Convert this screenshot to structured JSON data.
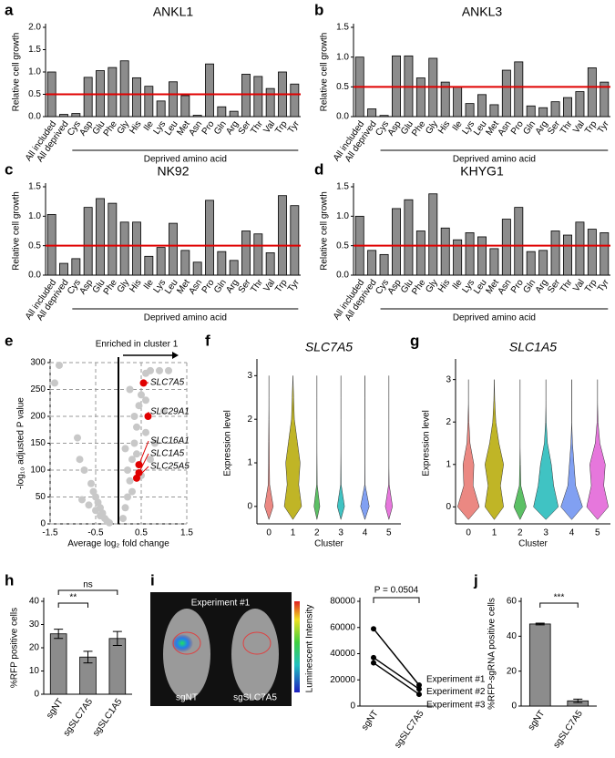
{
  "chart_data": [
    {
      "panel": "a",
      "type": "bar",
      "title": "ANKL1",
      "ylabel": "Relative cell growth",
      "xlabel": "Deprived amino acid",
      "categories": [
        "All included",
        "All deprived",
        "Cys",
        "Asp",
        "Glu",
        "Phe",
        "Gly",
        "His",
        "Ile",
        "Lys",
        "Leu",
        "Met",
        "Asn",
        "Pro",
        "Gln",
        "Arg",
        "Ser",
        "Thr",
        "Val",
        "Trp",
        "Tyr"
      ],
      "values": [
        1.0,
        0.05,
        0.07,
        0.88,
        1.03,
        1.1,
        1.25,
        0.87,
        0.68,
        0.35,
        0.78,
        0.47,
        0.03,
        1.18,
        0.22,
        0.12,
        0.95,
        0.9,
        0.63,
        1.0,
        0.73
      ],
      "color": "#8c8c8c",
      "ylim": [
        0,
        2
      ],
      "yticks": [
        {
          "value": 0,
          "label": "0.0"
        },
        0.5,
        {
          "value": 1,
          "label": "1.0"
        },
        1.5,
        {
          "value": 2,
          "label": "2.0"
        }
      ],
      "hline": 0.5,
      "hline_color": "#e00000"
    },
    {
      "panel": "b",
      "type": "bar",
      "title": "ANKL3",
      "ylabel": "Relative cell growth",
      "xlabel": "Deprived amino acid",
      "categories": [
        "All included",
        "All deprived",
        "Cys",
        "Asp",
        "Glu",
        "Phe",
        "Gly",
        "His",
        "Ile",
        "Lys",
        "Leu",
        "Met",
        "Asn",
        "Pro",
        "Gln",
        "Arg",
        "Ser",
        "Thr",
        "Val",
        "Trp",
        "Tyr"
      ],
      "values": [
        1.0,
        0.13,
        0.02,
        1.02,
        1.02,
        0.65,
        0.98,
        0.58,
        0.5,
        0.22,
        0.37,
        0.2,
        0.78,
        0.92,
        0.18,
        0.15,
        0.25,
        0.32,
        0.42,
        0.82,
        0.58
      ],
      "color": "#8c8c8c",
      "ylim": [
        0,
        1.5
      ],
      "yticks": [
        {
          "value": 0,
          "label": "0.0"
        },
        0.5,
        {
          "value": 1,
          "label": "1.0"
        },
        1.5
      ],
      "hline": 0.5,
      "hline_color": "#e00000"
    },
    {
      "panel": "c",
      "type": "bar",
      "title": "NK92",
      "ylabel": "Relative cell growth",
      "xlabel": "Deprived amino acid",
      "categories": [
        "All included",
        "All deprived",
        "Cys",
        "Asp",
        "Glu",
        "Phe",
        "Gly",
        "His",
        "Ile",
        "Lys",
        "Leu",
        "Met",
        "Asn",
        "Pro",
        "Gln",
        "Arg",
        "Ser",
        "Thr",
        "Val",
        "Trp",
        "Tyr"
      ],
      "values": [
        1.03,
        0.2,
        0.28,
        1.15,
        1.3,
        1.22,
        0.9,
        0.9,
        0.32,
        0.47,
        0.88,
        0.42,
        0.22,
        1.27,
        0.4,
        0.25,
        0.75,
        0.7,
        0.38,
        1.35,
        1.18
      ],
      "color": "#8c8c8c",
      "ylim": [
        0,
        1.5
      ],
      "yticks": [
        {
          "value": 0,
          "label": "0.0"
        },
        0.5,
        {
          "value": 1,
          "label": "1.0"
        },
        1.5
      ],
      "hline": 0.5,
      "hline_color": "#e00000"
    },
    {
      "panel": "d",
      "type": "bar",
      "title": "KHYG1",
      "ylabel": "Relative cell growth",
      "xlabel": "Deprived amino acid",
      "categories": [
        "All included",
        "All deprived",
        "Cys",
        "Asp",
        "Glu",
        "Phe",
        "Gly",
        "His",
        "Ile",
        "Lys",
        "Leu",
        "Met",
        "Asn",
        "Pro",
        "Gln",
        "Arg",
        "Ser",
        "Thr",
        "Val",
        "Trp",
        "Tyr"
      ],
      "values": [
        1.0,
        0.42,
        0.35,
        1.13,
        1.28,
        0.75,
        1.38,
        0.8,
        0.6,
        0.72,
        0.65,
        0.45,
        0.95,
        1.15,
        0.4,
        0.42,
        0.75,
        0.68,
        0.9,
        0.78,
        0.72
      ],
      "color": "#8c8c8c",
      "ylim": [
        0,
        1.5
      ],
      "yticks": [
        {
          "value": 0,
          "label": "0.0"
        },
        0.5,
        {
          "value": 1,
          "label": "1.0"
        },
        1.5
      ],
      "hline": 0.5,
      "hline_color": "#e00000"
    },
    {
      "panel": "e",
      "type": "scatter",
      "annotation": "Enriched in cluster 1",
      "xlabel": "Average log₂ fold change",
      "ylabel": "-log₁₀ adjusted P value",
      "x": [
        -1.4,
        -1.3,
        -0.9,
        -0.85,
        -0.75,
        -0.6,
        -0.55,
        -0.5,
        -0.45,
        -0.4,
        -0.35,
        -0.3,
        -0.25,
        -0.5,
        -0.65,
        -0.8,
        -0.2,
        -0.4,
        0.1,
        0.15,
        0.2,
        0.25,
        0.3,
        0.35,
        0.4,
        0.45,
        0.5,
        0.6,
        0.7,
        0.9,
        1.1,
        0.3,
        0.2,
        0.4,
        0.6,
        0.8,
        0.35,
        0.5,
        0.15,
        0.25,
        0.6,
        1.0,
        0.7
      ],
      "y": [
        262,
        295,
        160,
        120,
        100,
        75,
        60,
        50,
        40,
        30,
        20,
        10,
        5,
        25,
        35,
        45,
        2,
        15,
        10,
        30,
        50,
        80,
        120,
        150,
        180,
        220,
        240,
        280,
        285,
        285,
        285,
        60,
        100,
        130,
        170,
        150,
        200,
        90,
        140,
        250,
        230,
        210,
        120
      ],
      "color": "#c8c8c8",
      "highlighted": [
        {
          "name": "SLC7A5",
          "x": 0.55,
          "y": 262
        },
        {
          "name": "SLC29A1",
          "x": 0.65,
          "y": 200
        },
        {
          "name": "SLC16A1",
          "x": 0.45,
          "y": 110
        },
        {
          "name": "SLC1A5",
          "x": 0.45,
          "y": 95
        },
        {
          "name": "SLC25A5",
          "x": 0.4,
          "y": 85
        }
      ],
      "highlight_color": "#e00000",
      "xlim": [
        -1.5,
        1.5
      ],
      "xticks": [
        -1.5,
        -0.5,
        0.5,
        1.5
      ],
      "ylim": [
        0,
        300
      ],
      "yticks": [
        0,
        50,
        100,
        150,
        200,
        250,
        300
      ],
      "grid": true,
      "vline": 0
    },
    {
      "panel": "f",
      "type": "violin",
      "title": "SLC7A5",
      "xlabel": "Cluster",
      "ylabel": "Expression level",
      "categories": [
        "0",
        "1",
        "2",
        "3",
        "4",
        "5"
      ],
      "density_y": [
        0,
        0.5,
        1,
        1.5,
        2,
        2.5,
        3
      ],
      "density": [
        [
          0.3,
          0.05,
          0.03,
          0.02,
          0.01,
          0,
          0
        ],
        [
          0.6,
          0.4,
          0.5,
          0.3,
          0.1,
          0.05,
          0
        ],
        [
          0.2,
          0.02,
          0.01,
          0,
          0,
          0,
          0
        ],
        [
          0.25,
          0.02,
          0.01,
          0,
          0,
          0,
          0
        ],
        [
          0.3,
          0.01,
          0,
          0,
          0,
          0,
          0
        ],
        [
          0.25,
          0.02,
          0,
          0,
          0,
          0,
          0
        ]
      ],
      "colors": [
        "#e8736c",
        "#b5a800",
        "#3fb54a",
        "#1fb8b8",
        "#6b8ff0",
        "#e25fd6"
      ],
      "ylim": [
        -0.4,
        3.3
      ],
      "yticks": [
        0,
        1,
        2,
        3
      ]
    },
    {
      "panel": "g",
      "type": "violin",
      "title": "SLC1A5",
      "xlabel": "Cluster",
      "ylabel": "Expression level",
      "categories": [
        "0",
        "1",
        "2",
        "3",
        "4",
        "5"
      ],
      "density_y": [
        0,
        0.5,
        1,
        1.5,
        2,
        2.5,
        3
      ],
      "density": [
        [
          0.7,
          0.3,
          0.35,
          0.1,
          0.03,
          0,
          0
        ],
        [
          0.6,
          0.4,
          0.6,
          0.3,
          0.1,
          0.03,
          0
        ],
        [
          0.4,
          0.05,
          0.02,
          0,
          0,
          0,
          0
        ],
        [
          0.8,
          0.5,
          0.35,
          0.1,
          0.02,
          0,
          0
        ],
        [
          0.7,
          0.25,
          0.15,
          0.05,
          0,
          0,
          0
        ],
        [
          0.7,
          0.4,
          0.5,
          0.15,
          0.03,
          0,
          0
        ]
      ],
      "colors": [
        "#e8736c",
        "#b5a800",
        "#3fb54a",
        "#1fb8b8",
        "#6b8ff0",
        "#e25fd6"
      ],
      "ylim": [
        -0.4,
        3.4
      ],
      "yticks": [
        0,
        1,
        2,
        3
      ]
    },
    {
      "panel": "h",
      "type": "bar",
      "ylabel": "%RFP positive cells",
      "categories": [
        "sgNT",
        "sgSLC7A5",
        "sgSLC1A5"
      ],
      "values": [
        26,
        16,
        24
      ],
      "errors": [
        2,
        2.5,
        3
      ],
      "color": "#8c8c8c",
      "ylim": [
        0,
        40
      ],
      "yticks": [
        0,
        10,
        20,
        30,
        40
      ],
      "comparisons": [
        {
          "label": "**",
          "pair": [
            0,
            1
          ]
        },
        {
          "label": "ns",
          "pair": [
            0,
            2
          ]
        }
      ]
    },
    {
      "panel": "i",
      "type": "line",
      "image_texts": [
        "Experiment #1",
        "sgNT",
        "sgSLC7A5"
      ],
      "colorbar_label": "Luminescent Intensity",
      "annotation": "P = 0.0504",
      "categories": [
        "sgNT",
        "sgSLC7A5"
      ],
      "series": [
        {
          "name": "Experiment #1",
          "color": "#000000",
          "values": [
            59000,
            16000
          ]
        },
        {
          "name": "Experiment #2",
          "color": "#000000",
          "values": [
            37000,
            13000
          ]
        },
        {
          "name": "Experiment #3",
          "color": "#000000",
          "values": [
            33000,
            9000
          ]
        }
      ],
      "ylim": [
        0,
        80000
      ],
      "yticks": [
        0,
        20000,
        40000,
        60000,
        80000
      ]
    },
    {
      "panel": "j",
      "type": "bar",
      "ylabel": "%RFP-sgRNA positive cells",
      "categories": [
        "sgNT",
        "sgSLC7A5"
      ],
      "values": [
        47,
        3
      ],
      "errors": [
        0.5,
        1
      ],
      "color": "#8c8c8c",
      "ylim": [
        0,
        60
      ],
      "yticks": [
        0,
        20,
        40,
        60
      ],
      "comparisons": [
        {
          "label": "***",
          "pair": [
            0,
            1
          ]
        }
      ]
    }
  ]
}
